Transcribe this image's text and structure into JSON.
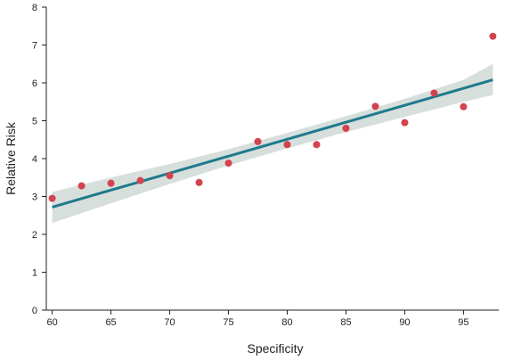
{
  "chart_data": {
    "type": "scatter",
    "title": "",
    "xlabel": "Specificity",
    "ylabel": "Relative Risk",
    "xlim": [
      59.5,
      98.0
    ],
    "ylim": [
      0,
      8
    ],
    "xticks": [
      60,
      65,
      70,
      75,
      80,
      85,
      90,
      95
    ],
    "yticks": [
      0,
      1,
      2,
      3,
      4,
      5,
      6,
      7,
      8
    ],
    "grid": false,
    "legend": "none",
    "points": {
      "x": [
        60,
        62.5,
        65,
        67.5,
        70,
        72.5,
        75,
        77.5,
        80,
        82.5,
        85,
        87.5,
        90,
        92.5,
        95,
        97.5
      ],
      "y": [
        2.95,
        3.28,
        3.35,
        3.42,
        3.55,
        3.37,
        3.88,
        4.45,
        4.37,
        4.37,
        4.8,
        5.38,
        4.95,
        5.73,
        5.37,
        7.23
      ]
    },
    "fit_line": {
      "x": [
        60,
        97.5
      ],
      "y": [
        2.72,
        6.08
      ]
    },
    "confidence_band": {
      "x": [
        60,
        65,
        70,
        75,
        80,
        85,
        90,
        95,
        97.5
      ],
      "lower": [
        2.3,
        2.82,
        3.33,
        3.82,
        4.27,
        4.7,
        5.1,
        5.5,
        5.68
      ],
      "upper": [
        3.12,
        3.5,
        3.86,
        4.25,
        4.68,
        5.12,
        5.58,
        6.08,
        6.5
      ]
    },
    "colors": {
      "points": "#d2424f",
      "fit_line": "#1f7a8c",
      "band": "#d7dfdc",
      "axis": "#222222"
    }
  }
}
